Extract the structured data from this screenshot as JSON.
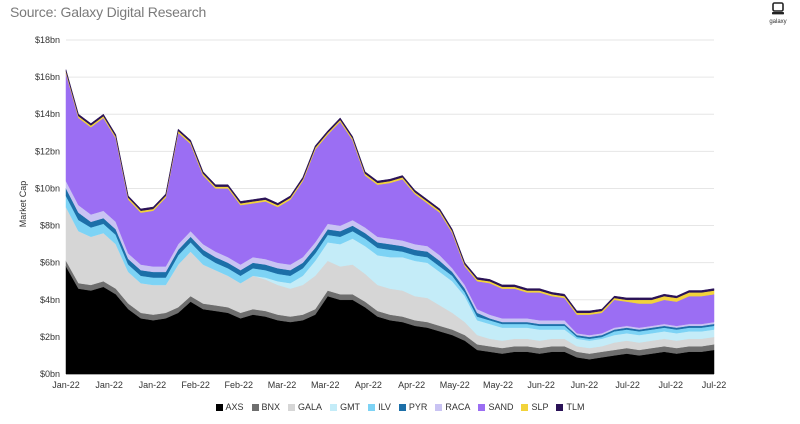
{
  "header": {
    "subtitle": "Source: Galaxy Digital Research"
  },
  "logo": {
    "text": "galaxy",
    "icon": "galaxy-logo-icon"
  },
  "chart_data": {
    "type": "area",
    "stacked": true,
    "ylabel": "Market Cap",
    "ylim": [
      0,
      18
    ],
    "yticks": [
      0,
      2,
      4,
      6,
      8,
      10,
      12,
      14,
      16,
      18
    ],
    "ytick_labels": [
      "$0bn",
      "$2bn",
      "$4bn",
      "$6bn",
      "$8bn",
      "$10bn",
      "$12bn",
      "$14bn",
      "$16bn",
      "$18bn"
    ],
    "xtick_labels": [
      "Jan-22",
      "Jan-22",
      "Jan-22",
      "Feb-22",
      "Feb-22",
      "Mar-22",
      "Mar-22",
      "Apr-22",
      "Apr-22",
      "May-22",
      "May-22",
      "Jun-22",
      "Jun-22",
      "Jul-22",
      "Jul-22",
      "Jul-22"
    ],
    "grid": true,
    "legend_position": "bottom",
    "x": [
      "2022-01-01",
      "2022-01-05",
      "2022-01-09",
      "2022-01-13",
      "2022-01-17",
      "2022-01-21",
      "2022-01-25",
      "2022-01-29",
      "2022-02-02",
      "2022-02-06",
      "2022-02-10",
      "2022-02-14",
      "2022-02-18",
      "2022-02-22",
      "2022-02-26",
      "2022-03-02",
      "2022-03-06",
      "2022-03-10",
      "2022-03-14",
      "2022-03-18",
      "2022-03-22",
      "2022-03-26",
      "2022-03-30",
      "2022-04-03",
      "2022-04-07",
      "2022-04-11",
      "2022-04-15",
      "2022-04-19",
      "2022-04-23",
      "2022-04-27",
      "2022-05-01",
      "2022-05-05",
      "2022-05-09",
      "2022-05-13",
      "2022-05-17",
      "2022-05-21",
      "2022-05-25",
      "2022-05-29",
      "2022-06-02",
      "2022-06-06",
      "2022-06-10",
      "2022-06-14",
      "2022-06-18",
      "2022-06-22",
      "2022-06-26",
      "2022-06-30",
      "2022-07-04",
      "2022-07-08",
      "2022-07-12",
      "2022-07-16",
      "2022-07-20",
      "2022-07-24",
      "2022-07-28"
    ],
    "series": [
      {
        "name": "AXS",
        "color": "#000000",
        "values": [
          5.8,
          4.6,
          4.5,
          4.7,
          4.3,
          3.5,
          3.0,
          2.9,
          3.0,
          3.3,
          3.9,
          3.5,
          3.4,
          3.3,
          3.0,
          3.2,
          3.1,
          2.9,
          2.8,
          2.9,
          3.2,
          4.2,
          4.0,
          4.0,
          3.6,
          3.1,
          2.9,
          2.8,
          2.6,
          2.5,
          2.3,
          2.1,
          1.8,
          1.3,
          1.2,
          1.1,
          1.2,
          1.2,
          1.1,
          1.2,
          1.2,
          0.9,
          0.8,
          0.9,
          1.0,
          1.1,
          1.0,
          1.1,
          1.2,
          1.1,
          1.2,
          1.2,
          1.3
        ]
      },
      {
        "name": "BNX",
        "color": "#6e6e6e",
        "values": [
          0.3,
          0.3,
          0.3,
          0.3,
          0.3,
          0.3,
          0.3,
          0.3,
          0.3,
          0.3,
          0.3,
          0.3,
          0.3,
          0.3,
          0.3,
          0.3,
          0.3,
          0.3,
          0.3,
          0.3,
          0.3,
          0.3,
          0.3,
          0.3,
          0.3,
          0.3,
          0.3,
          0.3,
          0.3,
          0.3,
          0.3,
          0.3,
          0.3,
          0.3,
          0.3,
          0.3,
          0.3,
          0.3,
          0.3,
          0.3,
          0.3,
          0.3,
          0.3,
          0.3,
          0.3,
          0.3,
          0.3,
          0.3,
          0.3,
          0.3,
          0.3,
          0.3,
          0.3
        ]
      },
      {
        "name": "GALA",
        "color": "#d6d6d6",
        "values": [
          2.9,
          2.8,
          2.6,
          2.6,
          2.4,
          1.7,
          1.6,
          1.6,
          1.5,
          2.3,
          2.4,
          2.1,
          1.9,
          1.7,
          1.6,
          1.8,
          1.7,
          1.6,
          1.5,
          1.6,
          1.8,
          1.6,
          1.5,
          1.6,
          1.5,
          1.4,
          1.4,
          1.4,
          1.3,
          1.3,
          1.1,
          0.9,
          0.7,
          0.5,
          0.4,
          0.4,
          0.4,
          0.4,
          0.4,
          0.4,
          0.4,
          0.3,
          0.3,
          0.3,
          0.4,
          0.4,
          0.4,
          0.4,
          0.4,
          0.4,
          0.4,
          0.4,
          0.4
        ]
      },
      {
        "name": "GMT",
        "color": "#c4ecf8",
        "values": [
          0.0,
          0.0,
          0.0,
          0.0,
          0.0,
          0.0,
          0.0,
          0.0,
          0.0,
          0.0,
          0.0,
          0.0,
          0.0,
          0.0,
          0.0,
          0.0,
          0.1,
          0.2,
          0.3,
          0.5,
          0.8,
          1.0,
          1.2,
          1.4,
          1.5,
          1.6,
          1.7,
          1.8,
          1.9,
          1.9,
          1.8,
          1.7,
          1.4,
          0.8,
          0.8,
          0.7,
          0.6,
          0.6,
          0.6,
          0.5,
          0.5,
          0.4,
          0.4,
          0.4,
          0.4,
          0.4,
          0.4,
          0.4,
          0.4,
          0.4,
          0.4,
          0.4,
          0.4
        ]
      },
      {
        "name": "ILV",
        "color": "#7dd3f5",
        "values": [
          0.6,
          0.6,
          0.5,
          0.5,
          0.5,
          0.4,
          0.4,
          0.4,
          0.4,
          0.5,
          0.5,
          0.5,
          0.4,
          0.4,
          0.4,
          0.4,
          0.4,
          0.4,
          0.4,
          0.4,
          0.4,
          0.4,
          0.4,
          0.4,
          0.4,
          0.4,
          0.4,
          0.3,
          0.3,
          0.3,
          0.3,
          0.3,
          0.2,
          0.2,
          0.2,
          0.2,
          0.2,
          0.2,
          0.2,
          0.2,
          0.2,
          0.1,
          0.1,
          0.1,
          0.2,
          0.2,
          0.2,
          0.2,
          0.2,
          0.2,
          0.2,
          0.2,
          0.2
        ]
      },
      {
        "name": "PYR",
        "color": "#1c6fa8",
        "values": [
          0.4,
          0.4,
          0.3,
          0.3,
          0.3,
          0.3,
          0.3,
          0.3,
          0.3,
          0.3,
          0.3,
          0.3,
          0.3,
          0.3,
          0.3,
          0.3,
          0.3,
          0.3,
          0.3,
          0.3,
          0.3,
          0.3,
          0.3,
          0.3,
          0.3,
          0.3,
          0.3,
          0.3,
          0.3,
          0.3,
          0.3,
          0.2,
          0.2,
          0.2,
          0.1,
          0.1,
          0.1,
          0.1,
          0.1,
          0.1,
          0.1,
          0.1,
          0.1,
          0.1,
          0.1,
          0.1,
          0.1,
          0.1,
          0.1,
          0.1,
          0.1,
          0.1,
          0.1
        ]
      },
      {
        "name": "RACA",
        "color": "#c9c3f3",
        "values": [
          0.4,
          0.4,
          0.4,
          0.4,
          0.4,
          0.3,
          0.3,
          0.3,
          0.3,
          0.3,
          0.3,
          0.3,
          0.3,
          0.3,
          0.3,
          0.3,
          0.3,
          0.3,
          0.3,
          0.3,
          0.3,
          0.3,
          0.3,
          0.3,
          0.3,
          0.3,
          0.3,
          0.3,
          0.3,
          0.3,
          0.3,
          0.2,
          0.2,
          0.2,
          0.2,
          0.2,
          0.2,
          0.2,
          0.2,
          0.2,
          0.2,
          0.1,
          0.1,
          0.1,
          0.1,
          0.1,
          0.1,
          0.1,
          0.1,
          0.1,
          0.1,
          0.1,
          0.1
        ]
      },
      {
        "name": "SAND",
        "color": "#9b6ef3",
        "values": [
          5.8,
          4.7,
          4.7,
          5.0,
          4.5,
          2.9,
          2.8,
          3.0,
          3.7,
          6.0,
          4.7,
          3.7,
          3.4,
          3.7,
          3.2,
          2.9,
          3.1,
          3.0,
          3.5,
          4.1,
          5.0,
          4.8,
          5.6,
          4.3,
          2.8,
          2.8,
          3.0,
          3.3,
          2.7,
          2.3,
          2.3,
          1.9,
          1.0,
          1.5,
          1.7,
          1.6,
          1.6,
          1.4,
          1.5,
          1.3,
          1.2,
          1.0,
          1.1,
          1.1,
          1.5,
          1.3,
          1.3,
          1.2,
          1.3,
          1.3,
          1.5,
          1.5,
          1.5
        ]
      },
      {
        "name": "SLP",
        "color": "#f2d33a",
        "values": [
          0.1,
          0.1,
          0.1,
          0.1,
          0.1,
          0.1,
          0.1,
          0.1,
          0.1,
          0.1,
          0.1,
          0.1,
          0.1,
          0.1,
          0.1,
          0.1,
          0.1,
          0.1,
          0.1,
          0.1,
          0.1,
          0.1,
          0.1,
          0.1,
          0.1,
          0.1,
          0.1,
          0.1,
          0.1,
          0.1,
          0.1,
          0.1,
          0.1,
          0.1,
          0.1,
          0.1,
          0.1,
          0.1,
          0.1,
          0.1,
          0.1,
          0.1,
          0.1,
          0.1,
          0.1,
          0.1,
          0.2,
          0.2,
          0.2,
          0.2,
          0.2,
          0.2,
          0.2
        ]
      },
      {
        "name": "TLM",
        "color": "#2a1257",
        "values": [
          0.1,
          0.1,
          0.1,
          0.1,
          0.1,
          0.1,
          0.1,
          0.1,
          0.1,
          0.1,
          0.1,
          0.1,
          0.1,
          0.1,
          0.1,
          0.1,
          0.1,
          0.1,
          0.1,
          0.1,
          0.1,
          0.1,
          0.1,
          0.1,
          0.1,
          0.1,
          0.1,
          0.1,
          0.1,
          0.1,
          0.1,
          0.1,
          0.1,
          0.1,
          0.1,
          0.1,
          0.1,
          0.1,
          0.1,
          0.1,
          0.1,
          0.1,
          0.1,
          0.1,
          0.1,
          0.1,
          0.1,
          0.1,
          0.1,
          0.1,
          0.1,
          0.1,
          0.1
        ]
      }
    ]
  }
}
